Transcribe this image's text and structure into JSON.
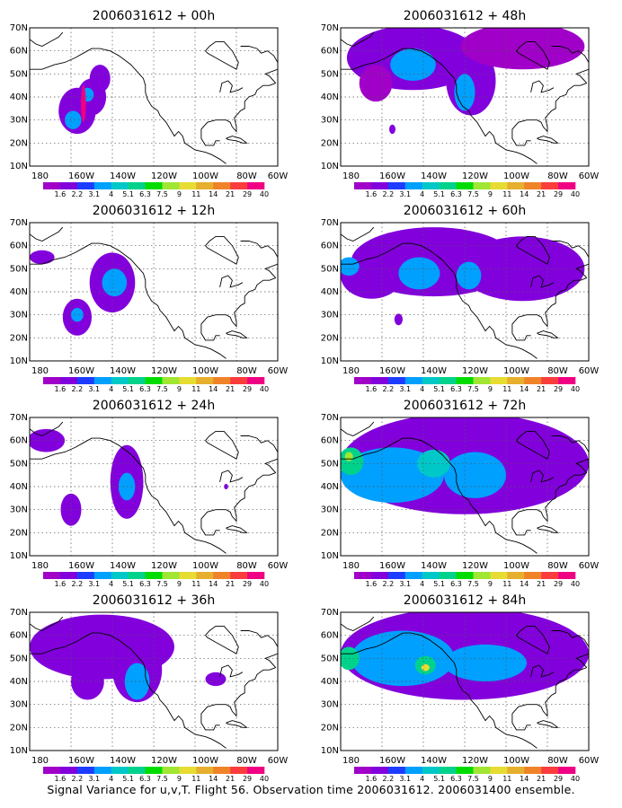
{
  "caption": "Signal Variance for u,v,T. Flight 56. Observation time 2006031612. 2006031400 ensemble.",
  "chart_data": {
    "type": "heatmap",
    "map_region": "North Pacific / North America",
    "colorbar": {
      "labels": [
        "1.6",
        "2.2",
        "3.1",
        "4",
        "5.1",
        "6.3",
        "7.5",
        "9",
        "11",
        "14",
        "21",
        "29",
        "40"
      ],
      "colors": [
        "#a000c8",
        "#8200dc",
        "#1e3cff",
        "#00a0ff",
        "#00c8c8",
        "#00d28c",
        "#00dc00",
        "#a0e632",
        "#e6dc32",
        "#e6af2d",
        "#f08228",
        "#fa3c3c",
        "#f00082"
      ]
    },
    "xticks": [
      "180",
      "160W",
      "140W",
      "120W",
      "100W",
      "80W",
      "60W"
    ],
    "yticks": [
      "10N",
      "20N",
      "30N",
      "40N",
      "50N",
      "60N",
      "70N"
    ],
    "xlim": [
      -180,
      -60
    ],
    "ylim": [
      10,
      70
    ],
    "grid": true,
    "panels": [
      {
        "title": "2006031612 + 00h",
        "blobs": [
          {
            "lon": -157,
            "lat": 34,
            "rx": 9,
            "ry": 10,
            "level": 1
          },
          {
            "lon": -150,
            "lat": 40,
            "rx": 7,
            "ry": 8,
            "level": 1
          },
          {
            "lon": -146,
            "lat": 48,
            "rx": 5,
            "ry": 6,
            "level": 1
          },
          {
            "lon": -159,
            "lat": 30,
            "rx": 4,
            "ry": 4,
            "level": 3
          },
          {
            "lon": -152,
            "lat": 41,
            "rx": 3,
            "ry": 3,
            "level": 3
          },
          {
            "lon": -154,
            "lat": 37,
            "rx": 1.2,
            "ry": 8,
            "level": 12
          }
        ]
      },
      {
        "title": "2006031612 + 48h",
        "blobs": [
          {
            "lon": -145,
            "lat": 57,
            "rx": 32,
            "ry": 14,
            "level": 1
          },
          {
            "lon": -117,
            "lat": 47,
            "rx": 12,
            "ry": 15,
            "level": 1
          },
          {
            "lon": -92,
            "lat": 62,
            "rx": 30,
            "ry": 10,
            "level": 0
          },
          {
            "lon": -163,
            "lat": 46,
            "rx": 8,
            "ry": 8,
            "level": 0
          },
          {
            "lon": -145,
            "lat": 54,
            "rx": 11,
            "ry": 7,
            "level": 3
          },
          {
            "lon": -120,
            "lat": 42,
            "rx": 5,
            "ry": 8,
            "level": 3
          },
          {
            "lon": -155,
            "lat": 26,
            "rx": 1.5,
            "ry": 2,
            "level": 1
          }
        ]
      },
      {
        "title": "2006031612 + 12h",
        "blobs": [
          {
            "lon": -174,
            "lat": 55,
            "rx": 6,
            "ry": 3,
            "level": 1
          },
          {
            "lon": -140,
            "lat": 44,
            "rx": 11,
            "ry": 13,
            "level": 1
          },
          {
            "lon": -157,
            "lat": 29,
            "rx": 7,
            "ry": 8,
            "level": 1
          },
          {
            "lon": -139,
            "lat": 44,
            "rx": 6,
            "ry": 6,
            "level": 3
          },
          {
            "lon": -157,
            "lat": 30,
            "rx": 3,
            "ry": 3,
            "level": 3
          }
        ]
      },
      {
        "title": "2006031612 + 60h",
        "blobs": [
          {
            "lon": -135,
            "lat": 53,
            "rx": 40,
            "ry": 15,
            "level": 1
          },
          {
            "lon": -92,
            "lat": 50,
            "rx": 30,
            "ry": 14,
            "level": 1
          },
          {
            "lon": -165,
            "lat": 47,
            "rx": 15,
            "ry": 10,
            "level": 1
          },
          {
            "lon": -142,
            "lat": 48,
            "rx": 10,
            "ry": 7,
            "level": 3
          },
          {
            "lon": -176,
            "lat": 51,
            "rx": 5,
            "ry": 4,
            "level": 3
          },
          {
            "lon": -118,
            "lat": 47,
            "rx": 6,
            "ry": 6,
            "level": 3
          },
          {
            "lon": -152,
            "lat": 28,
            "rx": 2,
            "ry": 2.5,
            "level": 1
          }
        ]
      },
      {
        "title": "2006031612 + 24h",
        "blobs": [
          {
            "lon": -172,
            "lat": 60,
            "rx": 9,
            "ry": 5,
            "level": 1
          },
          {
            "lon": -133,
            "lat": 42,
            "rx": 8,
            "ry": 16,
            "level": 1
          },
          {
            "lon": -160,
            "lat": 30,
            "rx": 5,
            "ry": 7,
            "level": 1
          },
          {
            "lon": -133,
            "lat": 40,
            "rx": 4,
            "ry": 6,
            "level": 3
          },
          {
            "lon": -85,
            "lat": 40,
            "rx": 1,
            "ry": 1.2,
            "level": 1
          }
        ]
      },
      {
        "title": "2006031612 + 72h",
        "blobs": [
          {
            "lon": -120,
            "lat": 50,
            "rx": 60,
            "ry": 22,
            "level": 1
          },
          {
            "lon": -155,
            "lat": 45,
            "rx": 25,
            "ry": 12,
            "level": 3
          },
          {
            "lon": -115,
            "lat": 45,
            "rx": 15,
            "ry": 10,
            "level": 3
          },
          {
            "lon": -175,
            "lat": 51,
            "rx": 6,
            "ry": 6,
            "level": 5
          },
          {
            "lon": -176,
            "lat": 53,
            "rx": 2,
            "ry": 2,
            "level": 7
          },
          {
            "lon": -135,
            "lat": 50,
            "rx": 8,
            "ry": 6,
            "level": 4
          }
        ]
      },
      {
        "title": "2006031612 + 36h",
        "blobs": [
          {
            "lon": -145,
            "lat": 55,
            "rx": 35,
            "ry": 14,
            "level": 1
          },
          {
            "lon": -128,
            "lat": 45,
            "rx": 12,
            "ry": 14,
            "level": 1
          },
          {
            "lon": -152,
            "lat": 40,
            "rx": 8,
            "ry": 8,
            "level": 1
          },
          {
            "lon": -128,
            "lat": 40,
            "rx": 6,
            "ry": 8,
            "level": 3
          },
          {
            "lon": -90,
            "lat": 41,
            "rx": 5,
            "ry": 3,
            "level": 1
          }
        ]
      },
      {
        "title": "2006031612 + 84h",
        "blobs": [
          {
            "lon": -120,
            "lat": 52,
            "rx": 60,
            "ry": 20,
            "level": 1
          },
          {
            "lon": -150,
            "lat": 50,
            "rx": 25,
            "ry": 12,
            "level": 3
          },
          {
            "lon": -110,
            "lat": 48,
            "rx": 20,
            "ry": 8,
            "level": 3
          },
          {
            "lon": -176,
            "lat": 50,
            "rx": 5,
            "ry": 5,
            "level": 5
          },
          {
            "lon": -139,
            "lat": 47,
            "rx": 5,
            "ry": 4,
            "level": 5
          },
          {
            "lon": -139,
            "lat": 46,
            "rx": 2,
            "ry": 1.5,
            "level": 8
          }
        ]
      }
    ]
  }
}
